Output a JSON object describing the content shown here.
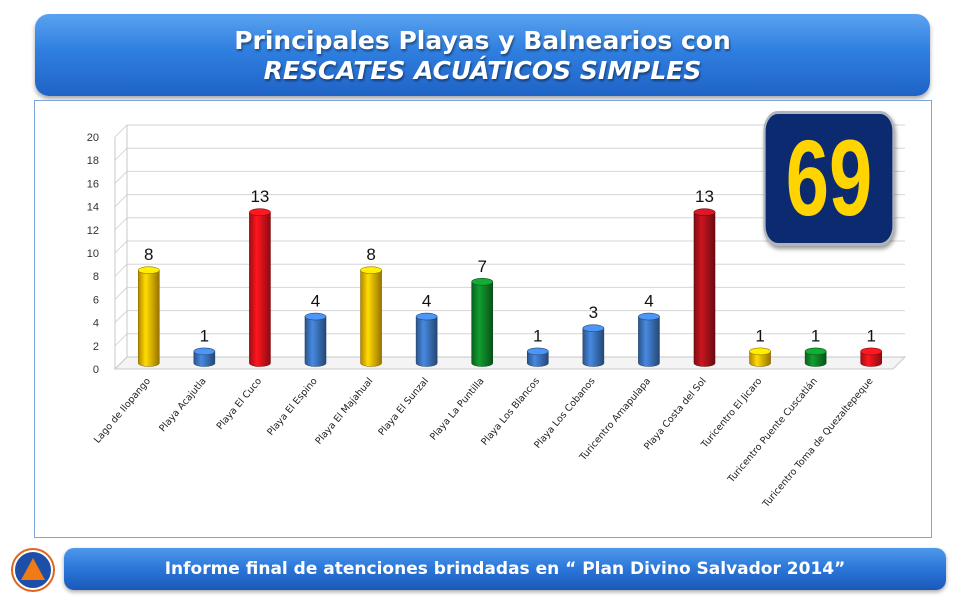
{
  "header": {
    "title_line1": "Principales Playas y Balnearios con",
    "title_line2": "RESCATES ACUÁTICOS SIMPLES"
  },
  "total_badge": {
    "value": "69",
    "color": "#ffd400",
    "background": "#0c2a70"
  },
  "footer": {
    "text": "Informe final de atenciones brindadas en “ Plan Divino Salvador 2014”"
  },
  "logo": {
    "icon": "civil-protection-logo-icon"
  },
  "colors": {
    "yellow": "#ffc000",
    "blue": "#3e78c4",
    "red": "#e8131b",
    "dark_red": "#b1121c",
    "green": "#0f8a2a"
  },
  "chart_data": {
    "type": "bar",
    "categories": [
      "Lago de Ilopango",
      "Playa Acajutla",
      "Playa El Cuco",
      "Playa El Espino",
      "Playa El Majahual",
      "Playa El Sunzal",
      "Playa La Puntilla",
      "Playa Los Blancos",
      "Playa Los Cobanos",
      "Turicentro Amapulapa",
      "Playa Costa del Sol",
      "Turicentro El Jicaro",
      "Turicentro Puente Cuscatlán",
      "Turicentro Toma de Quezaltepeque"
    ],
    "values": [
      8,
      1,
      13,
      4,
      8,
      4,
      7,
      1,
      3,
      4,
      13,
      1,
      1,
      1
    ],
    "value_labels": [
      "8",
      "1",
      "13",
      "4",
      "8",
      "4",
      "7",
      "1",
      "3",
      "4",
      "13",
      "1",
      "1",
      "1"
    ],
    "bar_colors": [
      "#ffc000",
      "#3e78c4",
      "#e8131b",
      "#3e78c4",
      "#ffc000",
      "#3e78c4",
      "#0f8a2a",
      "#3e78c4",
      "#3e78c4",
      "#3e78c4",
      "#b1121c",
      "#ffc000",
      "#0f8a2a",
      "#e8131b"
    ],
    "ylim": [
      0,
      20
    ],
    "yticks": [
      "0",
      "2",
      "4",
      "6",
      "8",
      "10",
      "12",
      "14",
      "16",
      "18",
      "20"
    ],
    "grid": true,
    "title": "",
    "xlabel": "",
    "ylabel": ""
  }
}
